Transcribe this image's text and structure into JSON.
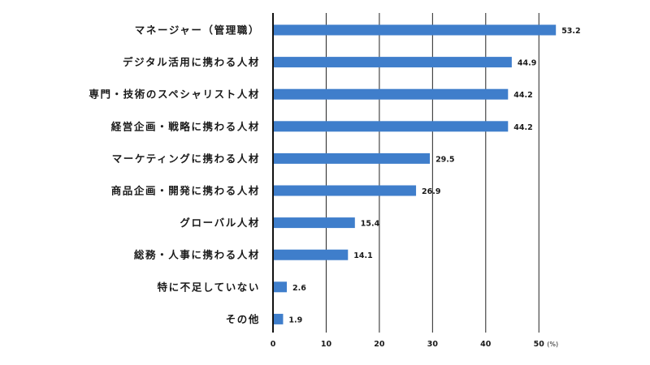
{
  "chart_data": {
    "type": "bar",
    "orientation": "horizontal",
    "categories": [
      "マネージャー（管理職）",
      "デジタル活用に携わる人材",
      "専門・技術のスペシャリスト人材",
      "経営企画・戦略に携わる人材",
      "マーケティングに携わる人材",
      "商品企画・開発に携わる人材",
      "グローバル人材",
      "総務・人事に携わる人材",
      "特に不足していない",
      "その他"
    ],
    "values": [
      53.2,
      44.9,
      44.2,
      44.2,
      29.5,
      26.9,
      15.4,
      14.1,
      2.6,
      1.9
    ],
    "value_labels": [
      "53.2",
      "44.9",
      "44.2",
      "44.2",
      "29.5",
      "26.9",
      "15.4",
      "14.1",
      "2.6",
      "1.9"
    ],
    "xticks": [
      "0",
      "10",
      "20",
      "30",
      "40",
      "50"
    ],
    "xtick_values": [
      0,
      10,
      20,
      30,
      40,
      50
    ],
    "unit": "(%)",
    "xlim": [
      0,
      53.2
    ],
    "grid": true,
    "bar_color": "#3f7ecb",
    "title": "",
    "xlabel": "",
    "ylabel": ""
  }
}
